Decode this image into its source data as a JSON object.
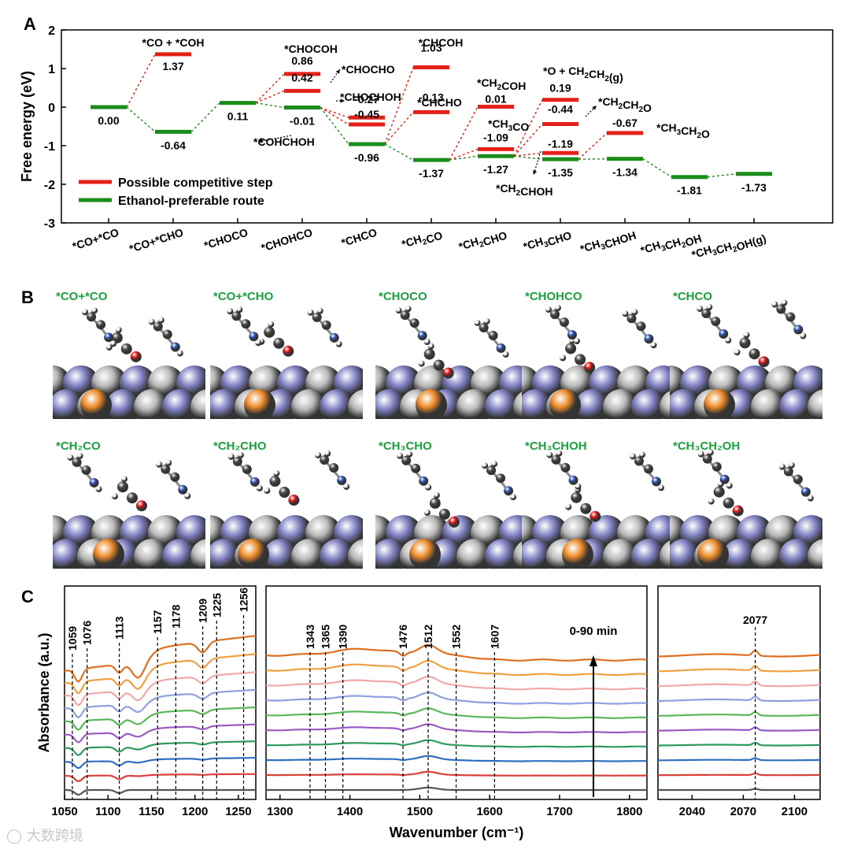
{
  "panel_labels": {
    "a": "A",
    "b": "B",
    "c": "C"
  },
  "watermark": {
    "text": "大数跨境",
    "icon": "camera-logo-icon"
  },
  "colors": {
    "competitive": "#e32118",
    "preferred": "#1a8c1a",
    "green_text": "#1aa03c",
    "blue_atom": "#2f55b8",
    "grey_atom": "#4a4a4a",
    "o_atom": "#e01414",
    "cu_ball": "#ee8c2a",
    "n_ball": "#7f80c2",
    "metal_ball": "#b9b9b9"
  },
  "chart_data": [
    {
      "type": "line",
      "id": "energy-diagram",
      "title": "",
      "ylabel": "Free energy (eV)",
      "ylim": [
        -3,
        2
      ],
      "yticks": [
        "-3",
        "-2",
        "-1",
        "0",
        "1",
        "2"
      ],
      "categories": [
        "*CO+*CO",
        "*CO+*CHO",
        "*CHOCO",
        "*CHOHCO",
        "*CHCO",
        "*CH₂CO",
        "*CH₂CHO",
        "*CH₃CHO",
        "*CH₃CHOH",
        "*CH₃CH₂OH",
        "*CH₃CH₂OH(g)"
      ],
      "legend": [
        {
          "label": "Possible competitive step",
          "color": "#e32118"
        },
        {
          "label": "Ethanol-preferable route",
          "color": "#1a8c1a"
        }
      ],
      "preferred_route": {
        "name": "Ethanol-preferable route",
        "values": [
          0.0,
          -0.64,
          0.11,
          -0.01,
          -0.96,
          -1.37,
          -1.27,
          -1.35,
          -1.34,
          -1.81,
          -1.73
        ],
        "labels": [
          "0.00",
          "-0.64",
          "0.11",
          "-0.01",
          "-0.96",
          "-1.37",
          "-1.27",
          "-1.35",
          "-1.34",
          "-1.81",
          "-1.73"
        ]
      },
      "competitive_levels": [
        {
          "x": 1,
          "value": 1.37,
          "label": "1.37",
          "species": "*CO + *COH",
          "from": 0
        },
        {
          "x": 3,
          "value": 0.86,
          "label": "0.86",
          "species": "*CHOCOH",
          "from": 2
        },
        {
          "x": 3,
          "value": 0.42,
          "label": "0.42",
          "species": "*CHOCHO",
          "from": 2
        },
        {
          "x": 4,
          "value": -0.27,
          "label": "-0.27",
          "species": "*CHOCHOH",
          "from": 3
        },
        {
          "x": 4,
          "value": -0.45,
          "label": "-0.45",
          "species": "*COHCHOH",
          "from": 3
        },
        {
          "x": 5,
          "value": 1.03,
          "label": "1.03",
          "species": "*CHCOH",
          "from": 4
        },
        {
          "x": 5,
          "value": -0.13,
          "label": "-0.13",
          "species": "*CHCHO",
          "from": 4
        },
        {
          "x": 6,
          "value": 0.01,
          "label": "0.01",
          "species": "*CH₂COH",
          "from": 5
        },
        {
          "x": 6,
          "value": -1.09,
          "label": "-1.09",
          "species": "*CH₃CO",
          "from": 5
        },
        {
          "x": 7,
          "value": 0.19,
          "label": "0.19",
          "species": "*O + CH₂CH₂(g)",
          "from": 6
        },
        {
          "x": 7,
          "value": -0.44,
          "label": "-0.44",
          "species": "*CH₂CH₂O",
          "from": 6
        },
        {
          "x": 7,
          "value": -1.19,
          "label": "-1.19",
          "species": "*CH₂CHOH",
          "from": 6
        },
        {
          "x": 8,
          "value": -0.67,
          "label": "-0.67",
          "species": "*CH₃CH₂O",
          "from": 7
        }
      ]
    },
    {
      "type": "line",
      "id": "ir-spectra",
      "xlabel": "Wavenumber (cm⁻¹)",
      "ylabel": "Absorbance (a.u.)",
      "time_label": "0-90 min",
      "series_colors": [
        "#555555",
        "#d9403a",
        "#2f6fc0",
        "#2e9a5e",
        "#9a5bc4",
        "#59b85a",
        "#8fa0e0",
        "#f0a8a8",
        "#f0a040",
        "#e07020"
      ],
      "segments": [
        {
          "xlim": [
            1050,
            1270
          ],
          "xticks": [
            "1050",
            "1100",
            "1150",
            "1200",
            "1250"
          ],
          "peaks": [
            "1059",
            "1076",
            "1113",
            "1157",
            "1178",
            "1209",
            "1225",
            "1256"
          ]
        },
        {
          "xlim": [
            1280,
            1825
          ],
          "xticks": [
            "1300",
            "1400",
            "1500",
            "1600",
            "1700",
            "1800"
          ],
          "peaks": [
            "1343",
            "1365",
            "1390",
            "1476",
            "1512",
            "1552",
            "1607"
          ]
        },
        {
          "xlim": [
            2020,
            2115
          ],
          "xticks": [
            "2040",
            "2070",
            "2100"
          ],
          "peaks": [
            "2077"
          ]
        }
      ]
    }
  ],
  "panel_b": {
    "tiles": [
      {
        "label": "*CO+*CO"
      },
      {
        "label": "*CO+*CHO"
      },
      {
        "label": "*CHOCO"
      },
      {
        "label": "*CHOHCO"
      },
      {
        "label": "*CHCO"
      },
      {
        "label": "*CH₂CO"
      },
      {
        "label": "*CH₂CHO"
      },
      {
        "label": "*CH₃CHO"
      },
      {
        "label": "*CH₃CHOH"
      },
      {
        "label": "*CH₃CH₂OH"
      }
    ]
  }
}
